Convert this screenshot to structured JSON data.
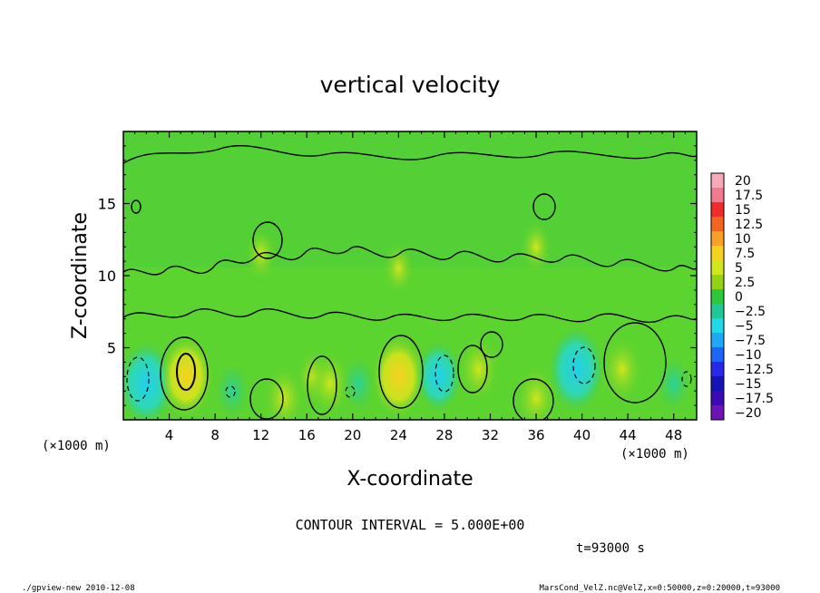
{
  "chart_data": {
    "type": "heatmap",
    "title": "vertical velocity",
    "xlabel": "X-coordinate",
    "ylabel": "Z-coordinate",
    "x_unit": "(×1000 m)",
    "z_unit": "(×1000 m)",
    "xlim": [
      0,
      50
    ],
    "ylim": [
      0,
      20
    ],
    "x_ticks": [
      "4",
      "8",
      "12",
      "16",
      "20",
      "24",
      "28",
      "32",
      "36",
      "40",
      "44",
      "48"
    ],
    "y_ticks": [
      "5",
      "10",
      "15"
    ],
    "colorbar_labels": [
      "20",
      "17.5",
      "15",
      "12.5",
      "10",
      "7.5",
      "5",
      "2.5",
      "0",
      "−2.5",
      "−5",
      "−7.5",
      "−10",
      "−12.5",
      "−15",
      "−17.5",
      "−20"
    ],
    "colorbar_colors": [
      "#f7a9b8",
      "#f27a8f",
      "#f02c2c",
      "#f5641e",
      "#f9a028",
      "#f6d220",
      "#d2e61e",
      "#96d214",
      "#2ec83c",
      "#20c898",
      "#20d8e8",
      "#1ea8f5",
      "#1e64f5",
      "#2828e6",
      "#1414b4",
      "#3c0ab4",
      "#6e14b4"
    ],
    "contour_interval": "CONTOUR INTERVAL = 5.000E+00",
    "time_label": "t=93000 s",
    "cells": [
      {
        "x": 2.0,
        "z": 2.5,
        "w": -7.5
      },
      {
        "x": 5.5,
        "z": 3.0,
        "w": 7.5
      },
      {
        "x": 9.5,
        "z": 2.0,
        "w": -2.5
      },
      {
        "x": 14.0,
        "z": 1.5,
        "w": 5.0
      },
      {
        "x": 16.5,
        "z": 3.0,
        "w": 2.5
      },
      {
        "x": 18.0,
        "z": 2.5,
        "w": 5.0
      },
      {
        "x": 20.5,
        "z": 2.5,
        "w": -2.5
      },
      {
        "x": 24.0,
        "z": 3.0,
        "w": 7.5
      },
      {
        "x": 27.5,
        "z": 3.0,
        "w": -5.0
      },
      {
        "x": 31.0,
        "z": 3.5,
        "w": 5.0
      },
      {
        "x": 36.0,
        "z": 1.5,
        "w": 5.0
      },
      {
        "x": 39.5,
        "z": 3.5,
        "w": -7.5
      },
      {
        "x": 43.5,
        "z": 3.5,
        "w": 5.0
      },
      {
        "x": 48.0,
        "z": 2.5,
        "w": -2.5
      },
      {
        "x": 12.0,
        "z": 11.5,
        "w": 2.5
      },
      {
        "x": 24.0,
        "z": 10.5,
        "w": 2.5
      },
      {
        "x": 36.0,
        "z": 12.0,
        "w": 2.5
      }
    ]
  },
  "footer": {
    "left": "./gpview-new   2010-12-08",
    "right": "MarsCond_VelZ.nc@VelZ,x=0:50000,z=0:20000,t=93000"
  }
}
